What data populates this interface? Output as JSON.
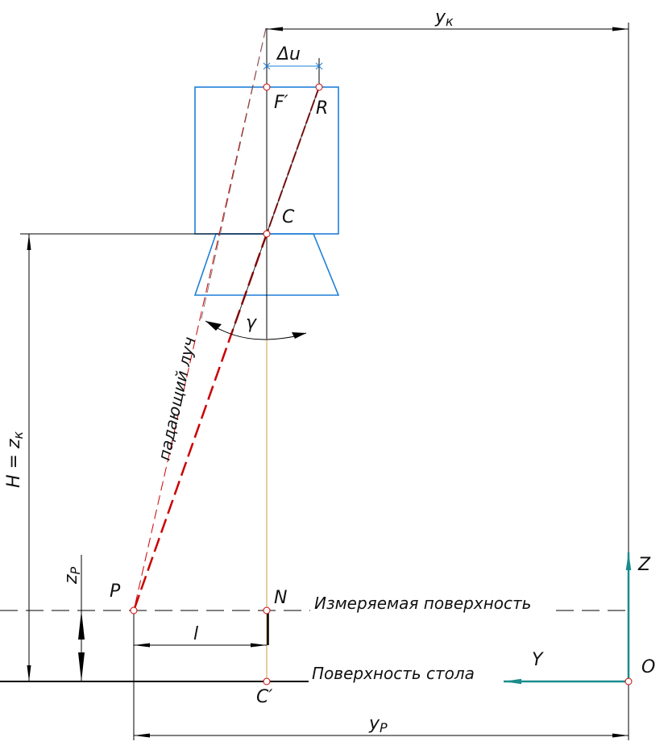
{
  "labels": {
    "yk": "y",
    "yk_sub": "к",
    "du": "Δu",
    "f_prime": "F′",
    "r": "R",
    "c": "C",
    "gamma": "γ",
    "ray": "падающий луч",
    "h_zk": "H = z",
    "h_zk_sub": "к",
    "zp": "z",
    "zp_sub": "P",
    "p": "P",
    "n": "N",
    "measured_surface": "Измеряемая поверхность",
    "l": "l",
    "table_surface": "Поверхность стола",
    "c_prime": "C′",
    "yp": "y",
    "yp_sub": "P",
    "axis_z": "Z",
    "axis_y": "Y",
    "origin": "O"
  },
  "colors": {
    "camera": "#1e7fd8",
    "ray": "#cc0000",
    "axes": "#1a8c8c",
    "optical_axis": "#c8a040"
  }
}
